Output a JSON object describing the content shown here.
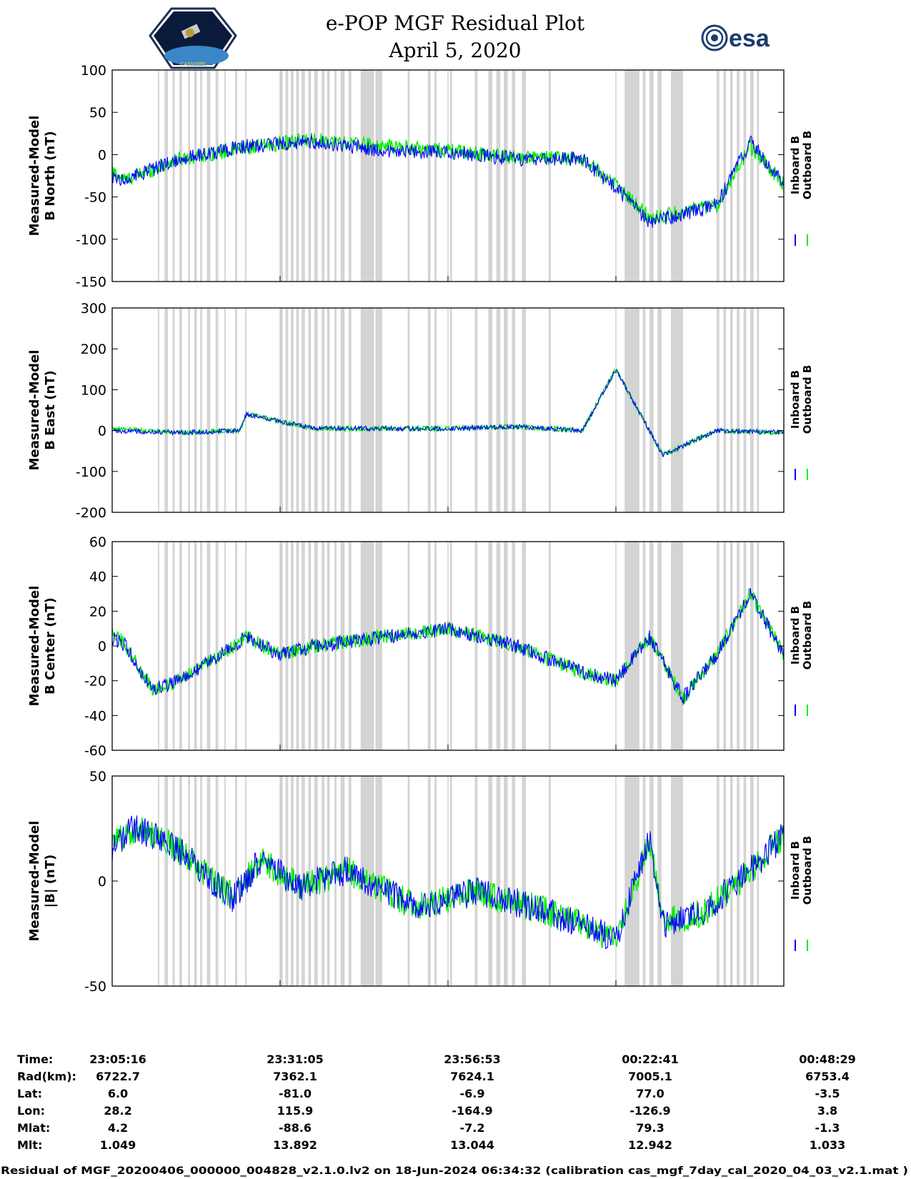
{
  "header": {
    "title_line1": "e-POP MGF Residual Plot",
    "title_line2": "April 5, 2020",
    "logo_left_text": "CASSIOPE",
    "logo_right_text": "esa"
  },
  "colors": {
    "inboard": "#0000ff",
    "outboard": "#00ee00",
    "shade": "#d4d4d4",
    "gridline": "#c8c8c8"
  },
  "chart_data": [
    {
      "type": "line",
      "ylabel_line1": "Measured-Model",
      "ylabel_line2": "B North (nT)",
      "ylim": [
        -150,
        100
      ],
      "yticks": [
        100,
        50,
        0,
        -50,
        -100,
        -150
      ],
      "legend": [
        "Inboard B",
        "Outboard B"
      ],
      "series": [
        {
          "name": "Outboard B",
          "x": [
            0,
            2,
            10,
            20,
            30,
            40,
            50,
            60,
            70,
            75,
            80,
            90,
            95,
            100
          ],
          "y": [
            -20,
            -30,
            -5,
            8,
            18,
            10,
            5,
            -3,
            -5,
            -35,
            -75,
            -60,
            10,
            -35
          ]
        },
        {
          "name": "Inboard B",
          "x": [
            0,
            2,
            10,
            20,
            30,
            40,
            50,
            60,
            70,
            75,
            80,
            90,
            95,
            100
          ],
          "y": [
            -25,
            -30,
            -5,
            10,
            15,
            5,
            3,
            -5,
            -5,
            -40,
            -80,
            -60,
            15,
            -35
          ]
        }
      ]
    },
    {
      "type": "line",
      "ylabel_line1": "Measured-Model",
      "ylabel_line2": "B East (nT)",
      "ylim": [
        -200,
        300
      ],
      "yticks": [
        300,
        200,
        100,
        0,
        -100,
        -200
      ],
      "legend": [
        "Inboard B",
        "Outboard B"
      ],
      "series": [
        {
          "name": "Outboard B",
          "x": [
            0,
            10,
            19,
            20,
            30,
            40,
            50,
            60,
            70,
            75,
            82,
            90,
            100
          ],
          "y": [
            5,
            -5,
            0,
            40,
            5,
            5,
            5,
            10,
            0,
            150,
            -60,
            0,
            -5
          ]
        },
        {
          "name": "Inboard B",
          "x": [
            0,
            10,
            19,
            20,
            30,
            40,
            50,
            60,
            70,
            75,
            82,
            90,
            100
          ],
          "y": [
            0,
            -5,
            0,
            40,
            5,
            5,
            5,
            10,
            0,
            150,
            -60,
            0,
            -5
          ]
        }
      ]
    },
    {
      "type": "line",
      "ylabel_line1": "Measured-Model",
      "ylabel_line2": "B Center (nT)",
      "ylim": [
        -60,
        60
      ],
      "yticks": [
        60,
        40,
        20,
        0,
        -20,
        -40,
        -60
      ],
      "legend": [
        "Inboard B",
        "Outboard B"
      ],
      "series": [
        {
          "name": "Outboard B",
          "x": [
            0,
            2,
            6,
            10,
            20,
            25,
            30,
            40,
            50,
            60,
            70,
            75,
            80,
            85,
            90,
            95,
            100
          ],
          "y": [
            10,
            0,
            -25,
            -20,
            5,
            -5,
            0,
            5,
            10,
            0,
            -15,
            -20,
            5,
            -30,
            -5,
            30,
            -5
          ]
        },
        {
          "name": "Inboard B",
          "x": [
            0,
            2,
            6,
            10,
            20,
            25,
            30,
            40,
            50,
            60,
            70,
            75,
            80,
            85,
            90,
            95,
            100
          ],
          "y": [
            5,
            0,
            -25,
            -20,
            5,
            -5,
            0,
            5,
            10,
            0,
            -15,
            -20,
            5,
            -30,
            -5,
            30,
            -5
          ]
        }
      ]
    },
    {
      "type": "line",
      "ylabel_line1": "Measured-Model",
      "ylabel_line2": "|B| (nT)",
      "ylim": [
        -50,
        50
      ],
      "yticks": [
        50,
        0,
        -50
      ],
      "legend": [
        "Inboard B",
        "Outboard B"
      ],
      "series": [
        {
          "name": "Outboard B",
          "x": [
            0,
            3,
            8,
            15,
            18,
            22,
            28,
            35,
            45,
            55,
            65,
            75,
            80,
            82,
            88,
            95,
            100
          ],
          "y": [
            18,
            25,
            20,
            0,
            -8,
            10,
            -3,
            5,
            -12,
            -5,
            -15,
            -28,
            20,
            -20,
            -15,
            5,
            22
          ]
        },
        {
          "name": "Inboard B",
          "x": [
            0,
            3,
            8,
            15,
            18,
            22,
            28,
            35,
            45,
            55,
            65,
            75,
            80,
            82,
            88,
            95,
            100
          ],
          "y": [
            15,
            25,
            20,
            0,
            -8,
            10,
            -3,
            5,
            -12,
            -5,
            -15,
            -28,
            20,
            -20,
            -15,
            5,
            22
          ]
        }
      ]
    }
  ],
  "time_table": {
    "rows": [
      {
        "label": "Time:",
        "values": [
          "23:05:16",
          "23:31:05",
          "23:56:53",
          "00:22:41",
          "00:48:29"
        ]
      },
      {
        "label": "Rad(km):",
        "values": [
          "6722.7",
          "7362.1",
          "7624.1",
          "7005.1",
          "6753.4"
        ]
      },
      {
        "label": "Lat:",
        "values": [
          "6.0",
          "-81.0",
          "-6.9",
          "77.0",
          "-3.5"
        ]
      },
      {
        "label": "Lon:",
        "values": [
          "28.2",
          "115.9",
          "-164.9",
          "-126.9",
          "3.8"
        ]
      },
      {
        "label": "Mlat:",
        "values": [
          "4.2",
          "-88.6",
          "-7.2",
          "79.3",
          "-1.3"
        ]
      },
      {
        "label": "Mlt:",
        "values": [
          "1.049",
          "13.892",
          "13.044",
          "12.942",
          "1.033"
        ]
      }
    ]
  },
  "footer": {
    "text": "Residual of MGF_20200406_000000_004828_v2.1.0.lv2 on 18-Jun-2024 06:34:32 (calibration cas_mgf_7day_cal_2020_04_03_v2.1.mat )"
  }
}
